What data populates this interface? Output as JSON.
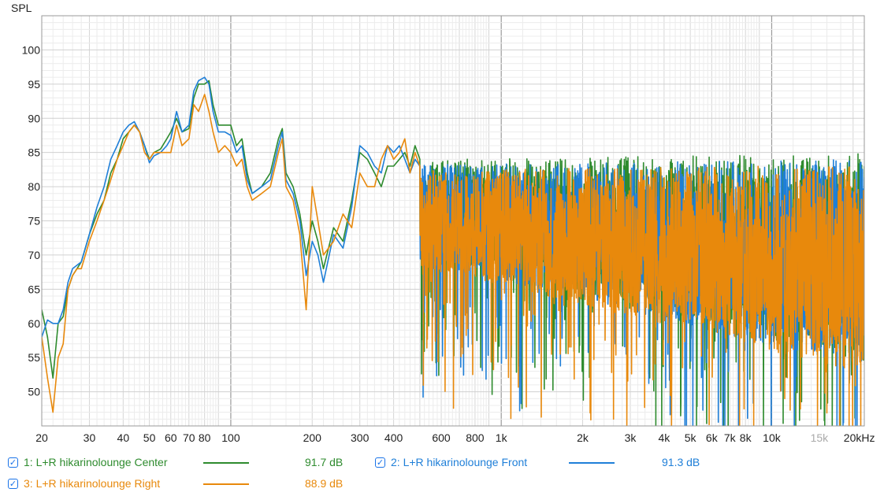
{
  "chart_data": {
    "type": "line",
    "title": "",
    "ylabel": "SPL",
    "xlabel": "",
    "x_scale": "log",
    "xlim": [
      20,
      22000
    ],
    "ylim": [
      45,
      105
    ],
    "grid": true,
    "x_ticks": [
      {
        "value": 20,
        "label": "20"
      },
      {
        "value": 30,
        "label": "30"
      },
      {
        "value": 40,
        "label": "40"
      },
      {
        "value": 50,
        "label": "50"
      },
      {
        "value": 60,
        "label": "60"
      },
      {
        "value": 70,
        "label": "70"
      },
      {
        "value": 80,
        "label": "80"
      },
      {
        "value": 100,
        "label": "100"
      },
      {
        "value": 200,
        "label": "200"
      },
      {
        "value": 300,
        "label": "300"
      },
      {
        "value": 400,
        "label": "400"
      },
      {
        "value": 600,
        "label": "600"
      },
      {
        "value": 800,
        "label": "800"
      },
      {
        "value": 1000,
        "label": "1k"
      },
      {
        "value": 2000,
        "label": "2k"
      },
      {
        "value": 3000,
        "label": "3k"
      },
      {
        "value": 4000,
        "label": "4k"
      },
      {
        "value": 5000,
        "label": "5k"
      },
      {
        "value": 6000,
        "label": "6k"
      },
      {
        "value": 7000,
        "label": "7k"
      },
      {
        "value": 8000,
        "label": "8k"
      },
      {
        "value": 10000,
        "label": "10k"
      },
      {
        "value": 15000,
        "label": "15k",
        "muted": true
      },
      {
        "value": 20000,
        "label": "20kHz"
      }
    ],
    "y_ticks": [
      50,
      55,
      60,
      65,
      70,
      75,
      80,
      85,
      90,
      95,
      100
    ],
    "series": [
      {
        "name": "1: L+R hikarinolounge Center",
        "color": "#2e8b2e",
        "level": "91.7 dB",
        "x": [
          20,
          21,
          22,
          23,
          24,
          25,
          26,
          27,
          28,
          30,
          32,
          34,
          36,
          38,
          40,
          42,
          44,
          46,
          48,
          50,
          52,
          55,
          58,
          60,
          63,
          66,
          70,
          73,
          76,
          80,
          83,
          86,
          90,
          95,
          100,
          105,
          110,
          115,
          120,
          130,
          140,
          150,
          155,
          160,
          170,
          180,
          190,
          200,
          210,
          220,
          240,
          260,
          280,
          300,
          320,
          340,
          360,
          380,
          400,
          420,
          440,
          460,
          480,
          500
        ],
        "values": [
          62,
          58,
          52,
          60,
          61,
          65,
          67,
          68,
          69,
          73,
          76,
          78,
          82,
          84,
          87,
          88,
          89,
          88,
          86,
          84,
          85,
          85.5,
          87,
          88,
          90,
          88,
          88.5,
          93,
          95,
          95,
          95.5,
          92,
          89,
          89,
          89,
          86,
          87,
          82,
          79,
          80,
          82,
          87,
          88.5,
          82,
          80,
          76,
          70,
          75,
          72,
          68,
          74,
          72,
          78,
          85,
          84,
          82,
          80,
          83,
          83,
          84,
          85,
          83,
          86,
          84
        ]
      },
      {
        "name": "2: L+R hikarinolounge Front",
        "color": "#1f7fd8",
        "level": "91.3 dB",
        "x": [
          20,
          21,
          22,
          23,
          24,
          25,
          26,
          27,
          28,
          30,
          32,
          34,
          36,
          38,
          40,
          42,
          44,
          46,
          48,
          50,
          52,
          55,
          58,
          60,
          63,
          66,
          70,
          73,
          76,
          80,
          83,
          86,
          90,
          95,
          100,
          105,
          110,
          115,
          120,
          130,
          140,
          150,
          155,
          160,
          170,
          180,
          190,
          200,
          210,
          220,
          240,
          260,
          280,
          300,
          320,
          340,
          360,
          380,
          400,
          420,
          440,
          460,
          480,
          500
        ],
        "values": [
          58,
          60.5,
          60,
          60,
          62,
          66,
          68,
          68.5,
          69,
          73,
          77,
          80,
          84,
          86,
          88,
          89,
          89.5,
          88,
          86,
          83.5,
          84.5,
          85,
          86,
          87,
          91,
          88,
          89,
          94,
          95.5,
          96,
          95,
          91,
          88,
          88,
          87.5,
          85,
          86,
          81,
          79,
          80,
          81,
          86,
          88,
          81,
          79,
          75,
          67,
          72,
          70,
          66,
          73,
          71,
          77,
          86,
          85,
          83,
          82,
          86,
          85,
          86,
          84,
          82,
          84,
          83
        ]
      },
      {
        "name": "3: L+R hikarinolounge Right",
        "color": "#e8890c",
        "level": "88.9 dB",
        "x": [
          20,
          21,
          22,
          23,
          24,
          25,
          26,
          27,
          28,
          30,
          32,
          34,
          36,
          38,
          40,
          42,
          44,
          46,
          48,
          50,
          52,
          55,
          58,
          60,
          63,
          66,
          70,
          73,
          76,
          80,
          83,
          86,
          90,
          95,
          100,
          105,
          110,
          115,
          120,
          130,
          140,
          150,
          155,
          160,
          170,
          180,
          190,
          200,
          210,
          220,
          240,
          260,
          280,
          300,
          320,
          340,
          360,
          380,
          400,
          420,
          440,
          460,
          480,
          500
        ],
        "values": [
          58,
          52,
          47,
          55,
          57,
          65,
          67,
          68,
          68,
          72,
          75,
          78,
          81,
          84,
          86,
          88,
          89,
          88,
          85,
          84,
          85,
          85,
          85,
          85,
          89,
          86,
          87,
          92,
          91,
          93.5,
          91,
          88,
          85,
          86,
          85,
          83,
          84,
          80,
          78,
          79,
          80,
          85,
          87,
          80,
          78,
          73,
          62,
          80,
          75,
          70,
          72,
          76,
          74,
          82,
          80,
          80,
          84,
          86,
          84,
          85,
          87,
          82,
          85,
          83
        ]
      }
    ]
  },
  "legend": {
    "items": [
      {
        "label": "1: L+R hikarinolounge Center",
        "value": "91.7 dB",
        "color": "#2e8b2e",
        "checked": true,
        "check_glyph": "✓"
      },
      {
        "label": "2: L+R hikarinolounge Front",
        "value": "91.3 dB",
        "color": "#1f7fd8",
        "checked": true,
        "check_glyph": "✓"
      },
      {
        "label": "3: L+R hikarinolounge Right",
        "value": "88.9 dB",
        "color": "#e8890c",
        "checked": true,
        "check_glyph": "✓"
      }
    ]
  }
}
